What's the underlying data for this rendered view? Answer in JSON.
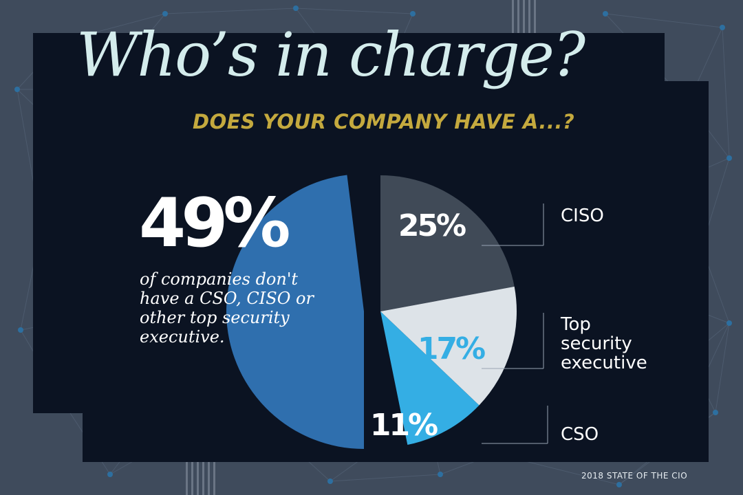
{
  "title": "Who’s in charge?",
  "subtitle": "DOES YOUR COMPANY HAVE A...?",
  "callout": {
    "value": "49%",
    "text": "of companies don't have a CSO, CISO or other top security executive."
  },
  "footer": "2018 STATE OF THE CIO",
  "colors": {
    "background": "#3f4b5c",
    "panel": "#0b1322",
    "title": "#d4ecec",
    "subtitle": "#c4a93e",
    "none": "#2f6fae",
    "ciso": "#404a57",
    "top_security_executive": "#dde3e8",
    "cso": "#34aee4"
  },
  "chart_data": {
    "type": "pie",
    "title": "DOES YOUR COMPANY HAVE A...?",
    "slices": [
      {
        "value": 49,
        "label": "49%",
        "legend": "",
        "color": "#2f6fae",
        "explode": true
      },
      {
        "value": 25,
        "label": "25%",
        "legend": "CISO",
        "color": "#404a57"
      },
      {
        "value": 17,
        "label": "17%",
        "legend": "Top security executive",
        "color": "#dde3e8"
      },
      {
        "value": 11,
        "label": "11%",
        "legend": "CSO",
        "color": "#34aee4"
      }
    ]
  }
}
